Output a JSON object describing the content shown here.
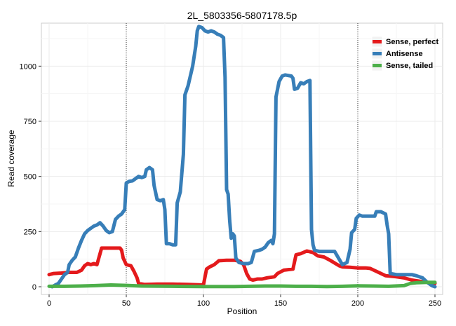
{
  "chart_data": {
    "type": "line",
    "title": "2L_5803356-5807178.5p",
    "xlabel": "Position",
    "ylabel": "Read coverage",
    "xlim": [
      -5,
      255
    ],
    "ylim": [
      -35,
      1195
    ],
    "x_ticks": [
      0,
      50,
      100,
      150,
      200,
      250
    ],
    "x_tick_labels": [
      "0",
      "50",
      "100",
      "150",
      "200",
      "250"
    ],
    "y_ticks": [
      0,
      250,
      500,
      750,
      1000
    ],
    "y_tick_labels": [
      "0",
      "250",
      "500",
      "750",
      "1000"
    ],
    "vlines": [
      50,
      200
    ],
    "grid": true,
    "legend_position": "top-right",
    "series": [
      {
        "name": "Sense, perfect",
        "color": "#e41a1c",
        "points": [
          [
            0,
            55
          ],
          [
            3,
            60
          ],
          [
            8,
            62
          ],
          [
            13,
            65
          ],
          [
            18,
            65
          ],
          [
            21,
            75
          ],
          [
            23,
            95
          ],
          [
            25,
            105
          ],
          [
            27,
            100
          ],
          [
            29,
            105
          ],
          [
            31,
            100
          ],
          [
            33,
            150
          ],
          [
            34,
            175
          ],
          [
            40,
            175
          ],
          [
            46,
            175
          ],
          [
            47,
            165
          ],
          [
            48,
            130
          ],
          [
            50,
            100
          ],
          [
            53,
            95
          ],
          [
            55,
            70
          ],
          [
            57,
            40
          ],
          [
            58,
            15
          ],
          [
            62,
            10
          ],
          [
            70,
            12
          ],
          [
            80,
            12
          ],
          [
            90,
            10
          ],
          [
            100,
            8
          ],
          [
            102,
            80
          ],
          [
            104,
            90
          ],
          [
            107,
            100
          ],
          [
            110,
            118
          ],
          [
            115,
            120
          ],
          [
            120,
            120
          ],
          [
            124,
            115
          ],
          [
            126,
            100
          ],
          [
            128,
            60
          ],
          [
            130,
            35
          ],
          [
            132,
            30
          ],
          [
            135,
            35
          ],
          [
            138,
            35
          ],
          [
            141,
            40
          ],
          [
            146,
            45
          ],
          [
            148,
            60
          ],
          [
            152,
            75
          ],
          [
            158,
            80
          ],
          [
            160,
            145
          ],
          [
            163,
            150
          ],
          [
            167,
            162
          ],
          [
            171,
            155
          ],
          [
            174,
            140
          ],
          [
            178,
            135
          ],
          [
            182,
            120
          ],
          [
            188,
            95
          ],
          [
            190,
            90
          ],
          [
            195,
            88
          ],
          [
            200,
            85
          ],
          [
            205,
            85
          ],
          [
            208,
            83
          ],
          [
            212,
            70
          ],
          [
            218,
            50
          ],
          [
            225,
            45
          ],
          [
            230,
            40
          ],
          [
            235,
            30
          ],
          [
            245,
            20
          ],
          [
            250,
            15
          ]
        ]
      },
      {
        "name": "Antisense",
        "color": "#377eb8",
        "points": [
          [
            2,
            0
          ],
          [
            4,
            8
          ],
          [
            6,
            15
          ],
          [
            8,
            35
          ],
          [
            10,
            55
          ],
          [
            12,
            65
          ],
          [
            13,
            100
          ],
          [
            15,
            120
          ],
          [
            17,
            135
          ],
          [
            19,
            175
          ],
          [
            21,
            210
          ],
          [
            23,
            240
          ],
          [
            25,
            255
          ],
          [
            27,
            265
          ],
          [
            29,
            275
          ],
          [
            31,
            280
          ],
          [
            33,
            290
          ],
          [
            35,
            275
          ],
          [
            37,
            255
          ],
          [
            39,
            245
          ],
          [
            41,
            250
          ],
          [
            43,
            305
          ],
          [
            45,
            320
          ],
          [
            47,
            330
          ],
          [
            49,
            350
          ],
          [
            50,
            470
          ],
          [
            52,
            478
          ],
          [
            54,
            480
          ],
          [
            56,
            490
          ],
          [
            58,
            500
          ],
          [
            60,
            495
          ],
          [
            62,
            500
          ],
          [
            63,
            530
          ],
          [
            65,
            540
          ],
          [
            67,
            530
          ],
          [
            68,
            460
          ],
          [
            70,
            395
          ],
          [
            72,
            390
          ],
          [
            74,
            395
          ],
          [
            75,
            350
          ],
          [
            76,
            195
          ],
          [
            78,
            195
          ],
          [
            80,
            190
          ],
          [
            82,
            190
          ],
          [
            83,
            380
          ],
          [
            85,
            430
          ],
          [
            87,
            600
          ],
          [
            88,
            870
          ],
          [
            90,
            910
          ],
          [
            93,
            1000
          ],
          [
            95,
            1090
          ],
          [
            96,
            1160
          ],
          [
            97,
            1180
          ],
          [
            99,
            1175
          ],
          [
            101,
            1160
          ],
          [
            103,
            1155
          ],
          [
            105,
            1160
          ],
          [
            107,
            1155
          ],
          [
            109,
            1145
          ],
          [
            111,
            1140
          ],
          [
            113,
            1130
          ],
          [
            114,
            950
          ],
          [
            115,
            440
          ],
          [
            116,
            420
          ],
          [
            117,
            300
          ],
          [
            118,
            220
          ],
          [
            119,
            240
          ],
          [
            120,
            230
          ],
          [
            121,
            130
          ],
          [
            123,
            110
          ],
          [
            126,
            105
          ],
          [
            129,
            105
          ],
          [
            131,
            110
          ],
          [
            133,
            160
          ],
          [
            136,
            165
          ],
          [
            138,
            170
          ],
          [
            140,
            180
          ],
          [
            142,
            200
          ],
          [
            144,
            210
          ],
          [
            145,
            195
          ],
          [
            146,
            240
          ],
          [
            147,
            860
          ],
          [
            149,
            930
          ],
          [
            151,
            955
          ],
          [
            153,
            960
          ],
          [
            157,
            955
          ],
          [
            158,
            945
          ],
          [
            159,
            895
          ],
          [
            161,
            900
          ],
          [
            163,
            925
          ],
          [
            165,
            920
          ],
          [
            167,
            930
          ],
          [
            169,
            935
          ],
          [
            170,
            260
          ],
          [
            171,
            190
          ],
          [
            172,
            165
          ],
          [
            175,
            160
          ],
          [
            180,
            160
          ],
          [
            185,
            160
          ],
          [
            190,
            100
          ],
          [
            193,
            110
          ],
          [
            195,
            170
          ],
          [
            196,
            245
          ],
          [
            198,
            260
          ],
          [
            199,
            310
          ],
          [
            201,
            325
          ],
          [
            203,
            320
          ],
          [
            207,
            320
          ],
          [
            211,
            320
          ],
          [
            212,
            340
          ],
          [
            215,
            340
          ],
          [
            218,
            330
          ],
          [
            219,
            280
          ],
          [
            220,
            240
          ],
          [
            221,
            60
          ],
          [
            225,
            55
          ],
          [
            230,
            55
          ],
          [
            235,
            55
          ],
          [
            238,
            50
          ],
          [
            242,
            40
          ],
          [
            245,
            20
          ],
          [
            248,
            5
          ],
          [
            250,
            0
          ]
        ]
      },
      {
        "name": "Sense, tailed",
        "color": "#4daf4a",
        "points": [
          [
            0,
            2
          ],
          [
            10,
            2
          ],
          [
            20,
            3
          ],
          [
            30,
            5
          ],
          [
            40,
            8
          ],
          [
            50,
            6
          ],
          [
            60,
            3
          ],
          [
            80,
            2
          ],
          [
            100,
            1
          ],
          [
            120,
            1
          ],
          [
            130,
            2
          ],
          [
            140,
            3
          ],
          [
            150,
            3
          ],
          [
            160,
            2
          ],
          [
            170,
            2
          ],
          [
            180,
            1
          ],
          [
            190,
            2
          ],
          [
            200,
            4
          ],
          [
            210,
            3
          ],
          [
            220,
            2
          ],
          [
            230,
            5
          ],
          [
            234,
            15
          ],
          [
            238,
            18
          ],
          [
            245,
            20
          ],
          [
            250,
            20
          ]
        ]
      }
    ]
  }
}
